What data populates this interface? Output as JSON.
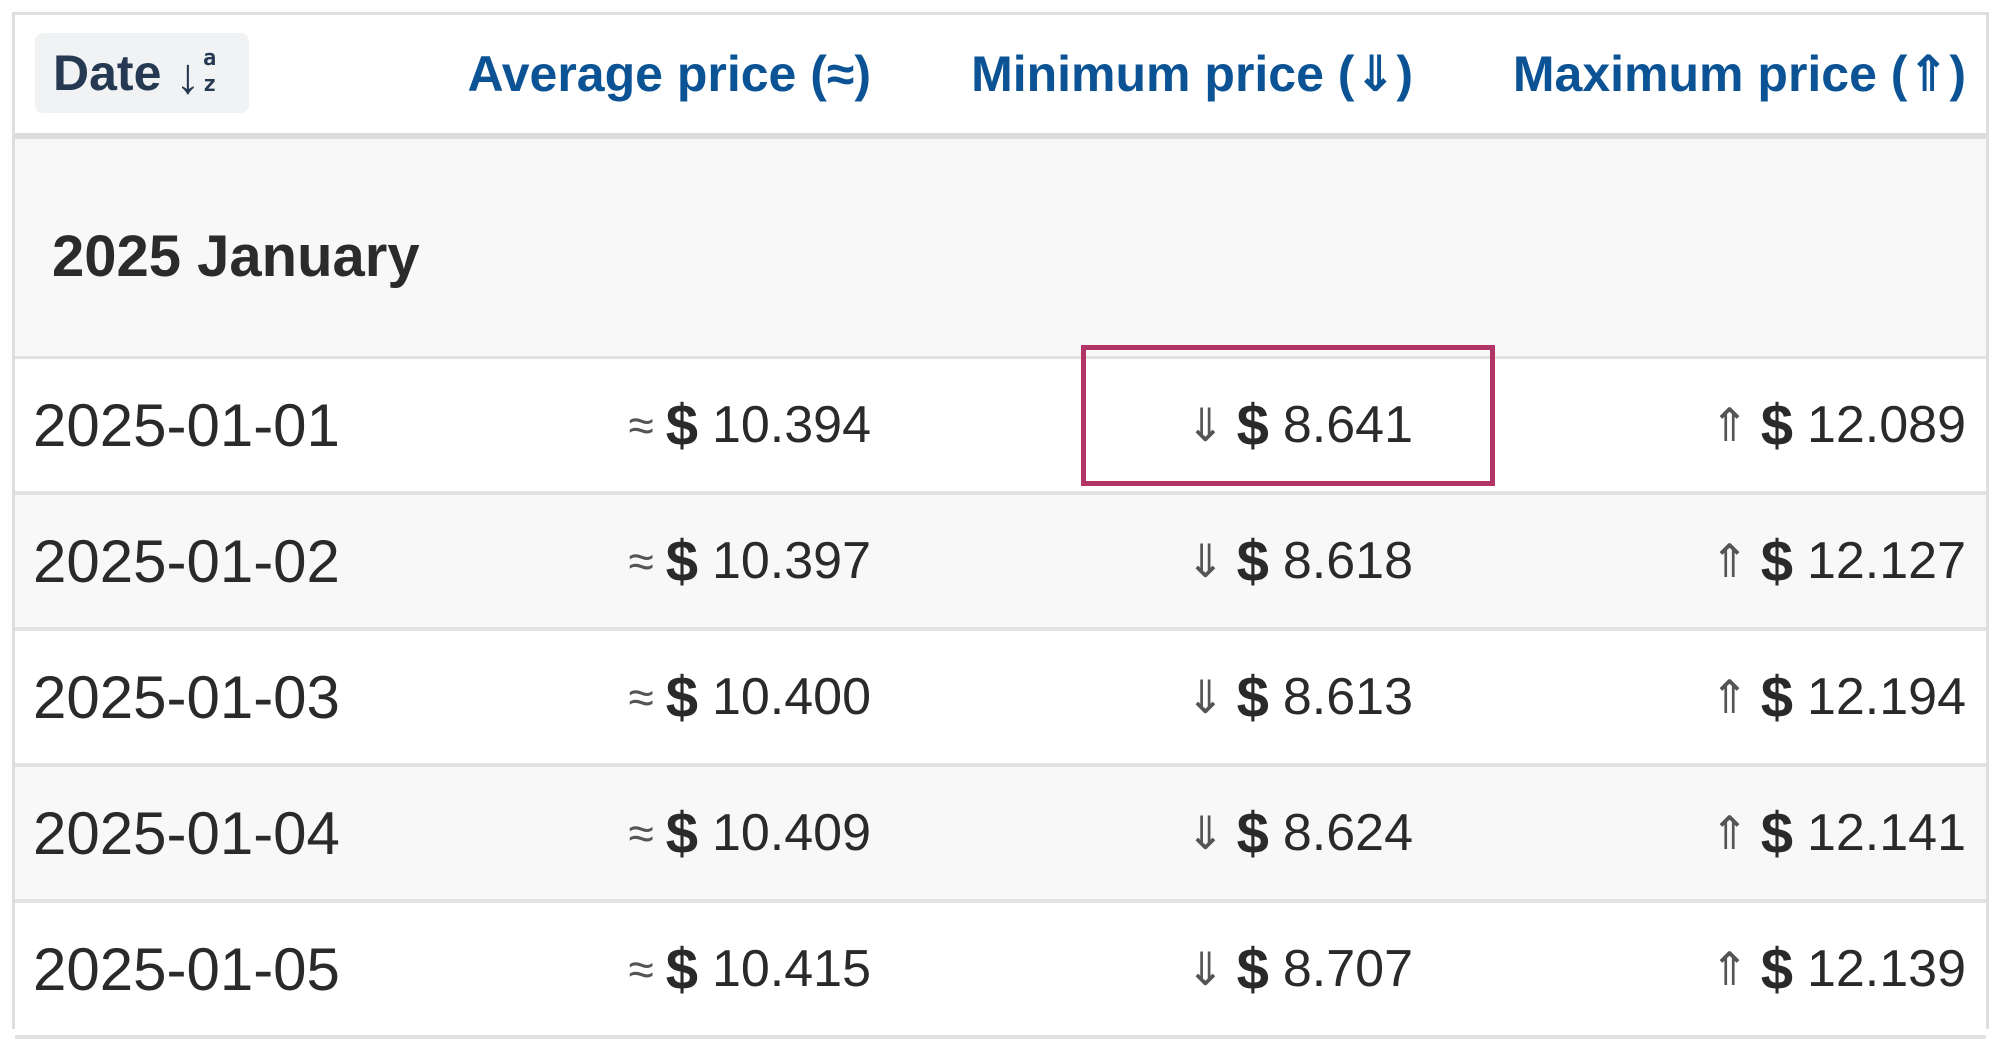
{
  "header": {
    "date_label": "Date",
    "date_sort_arrow": "↓",
    "date_sort_letters": "a\nz",
    "average_label": "Average price (≈)",
    "minimum_label": "Minimum price (⇓)",
    "maximum_label": "Maximum price (⇑)"
  },
  "group": {
    "title": "2025 January"
  },
  "symbols": {
    "avg": "≈",
    "min": "⇓",
    "max": "⇑",
    "currency": "$"
  },
  "rows": [
    {
      "date": "2025-01-01",
      "avg": "10.394",
      "min": "8.641",
      "max": "12.089"
    },
    {
      "date": "2025-01-02",
      "avg": "10.397",
      "min": "8.618",
      "max": "12.127"
    },
    {
      "date": "2025-01-03",
      "avg": "10.400",
      "min": "8.613",
      "max": "12.194"
    },
    {
      "date": "2025-01-04",
      "avg": "10.409",
      "min": "8.624",
      "max": "12.141"
    },
    {
      "date": "2025-01-05",
      "avg": "10.415",
      "min": "8.707",
      "max": "12.139"
    }
  ],
  "colors": {
    "header_link": "#0b5394",
    "highlight_border": "#b03466"
  }
}
